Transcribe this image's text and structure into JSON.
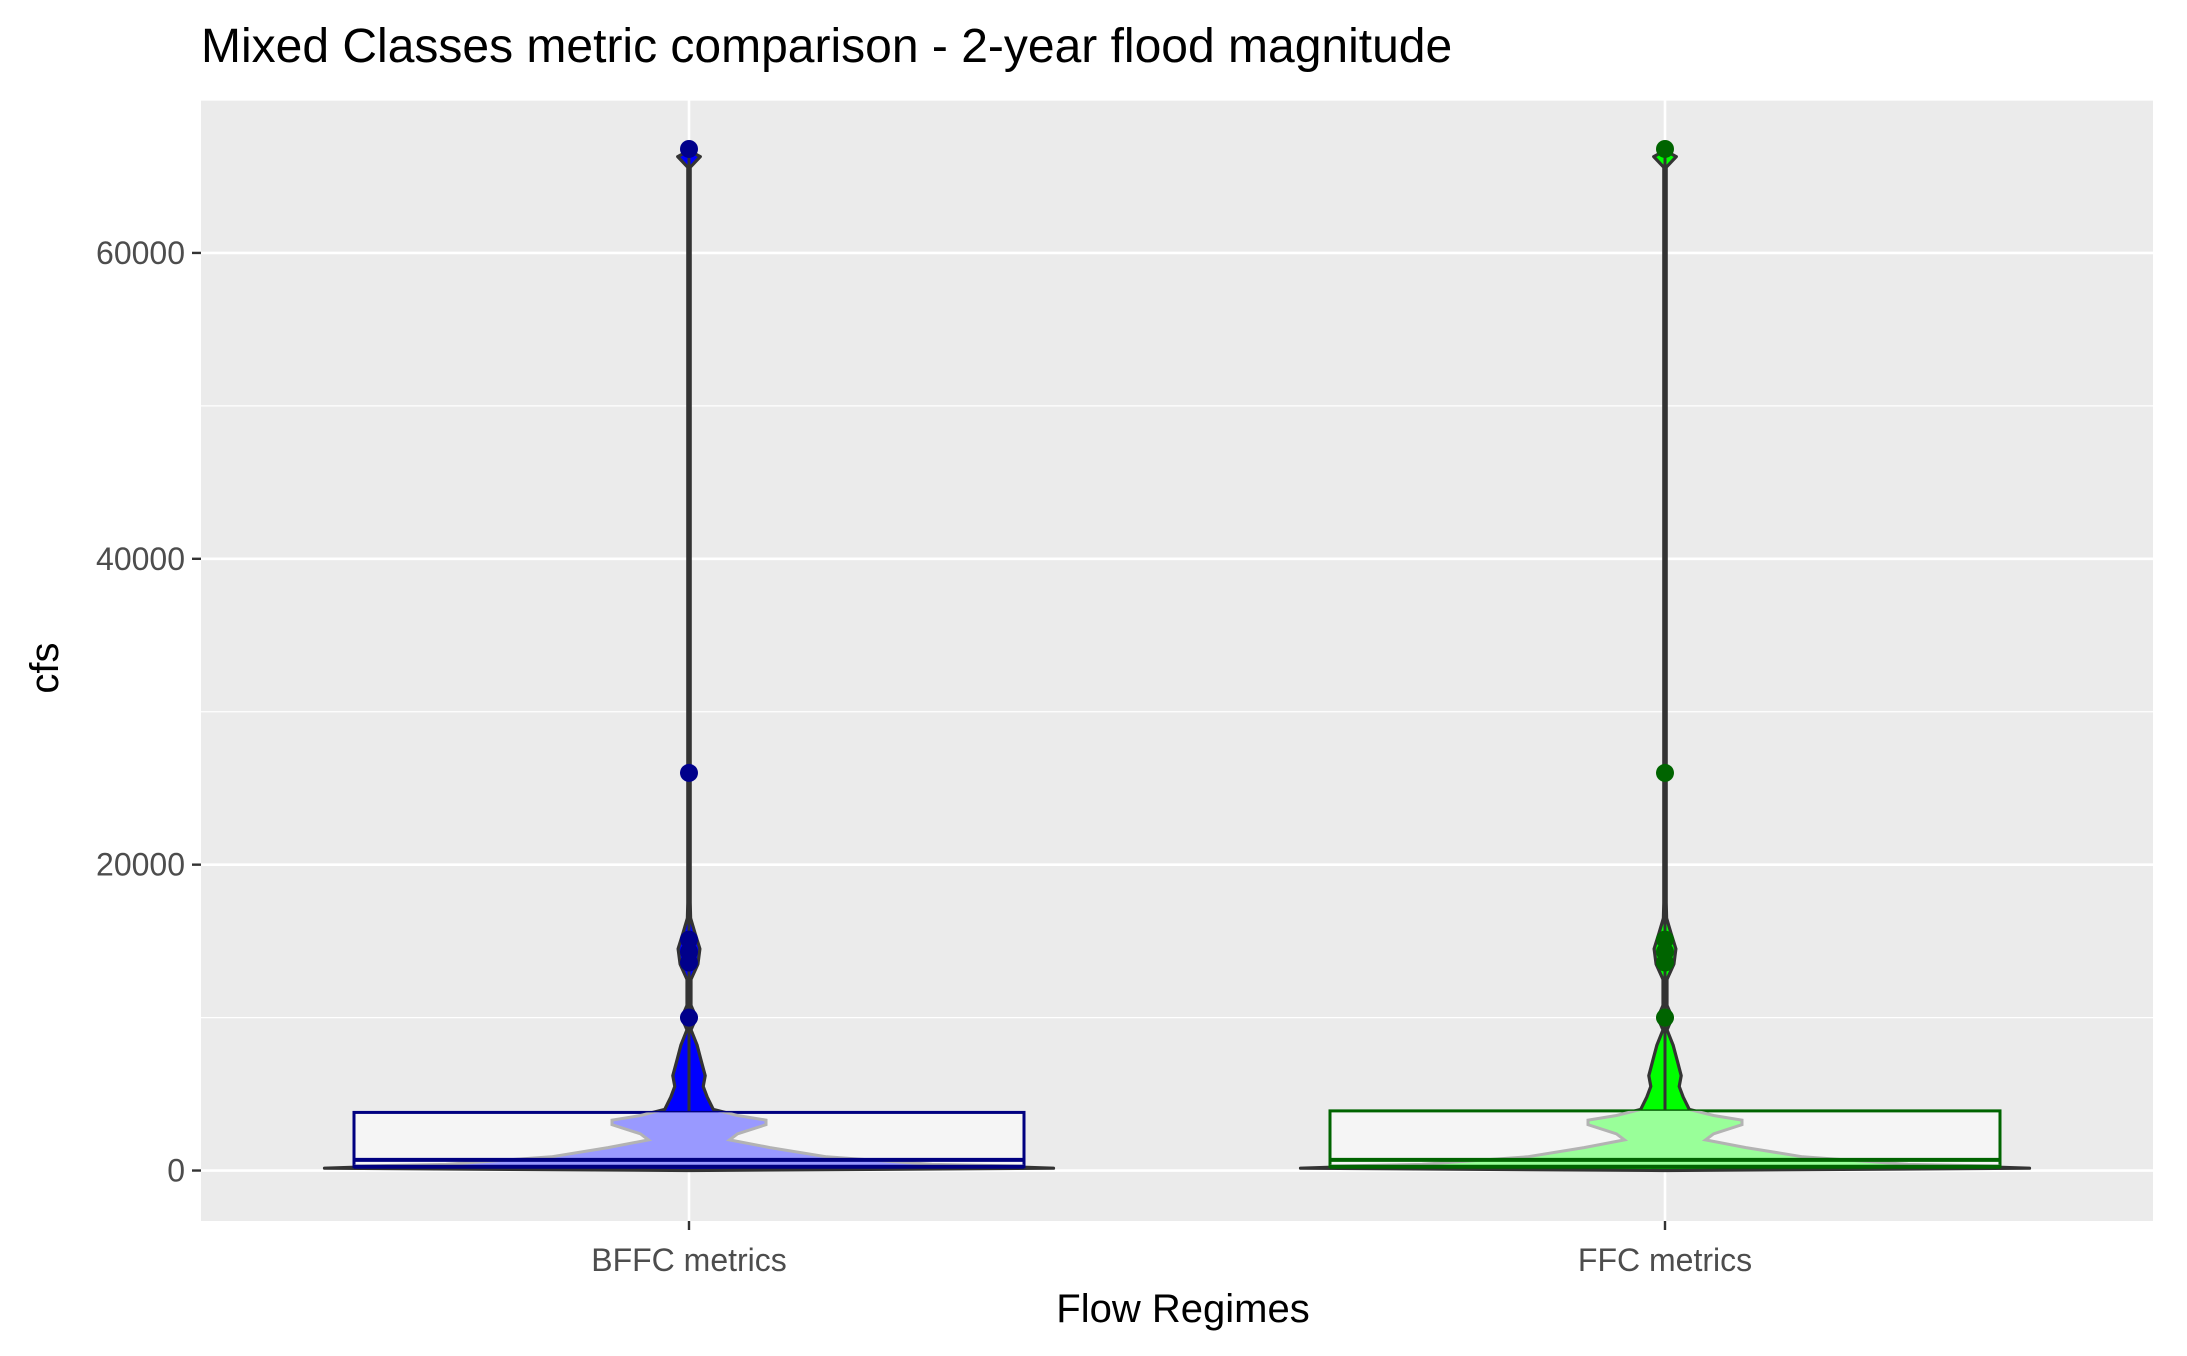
{
  "chart_data": {
    "type": "violin",
    "title": "Mixed Classes metric comparison - 2-year flood magnitude",
    "xlabel": "Flow Regimes",
    "ylabel": "cfs",
    "categories": [
      "BFFC metrics",
      "FFC metrics"
    ],
    "ylim": [
      -3300,
      70000
    ],
    "yticks": [
      0,
      20000,
      40000,
      60000
    ],
    "ytick_labels": [
      "0",
      "20000",
      "40000",
      "60000"
    ],
    "grid": true,
    "legend": "none",
    "series": [
      {
        "category": "BFFC metrics",
        "fill": "#0000ff",
        "inner_fill": "#9999ff",
        "box_color": "#000080",
        "point_color": "#00008b",
        "box": {
          "q1": 250,
          "median": 700,
          "q3": 3800
        },
        "points": [
          66800,
          26000,
          15100,
          14300,
          13600,
          10000
        ],
        "density": [
          {
            "y": 0,
            "w": 0.0
          },
          {
            "y": 150,
            "w": 0.9
          },
          {
            "y": 400,
            "w": 0.6
          },
          {
            "y": 900,
            "w": 0.34
          },
          {
            "y": 1500,
            "w": 0.2
          },
          {
            "y": 2000,
            "w": 0.1
          },
          {
            "y": 2400,
            "w": 0.12
          },
          {
            "y": 3000,
            "w": 0.19
          },
          {
            "y": 3300,
            "w": 0.19
          },
          {
            "y": 3600,
            "w": 0.12
          },
          {
            "y": 4000,
            "w": 0.06
          },
          {
            "y": 4800,
            "w": 0.045
          },
          {
            "y": 5500,
            "w": 0.035
          },
          {
            "y": 6200,
            "w": 0.04
          },
          {
            "y": 7200,
            "w": 0.03
          },
          {
            "y": 8200,
            "w": 0.02
          },
          {
            "y": 9200,
            "w": 0.005
          },
          {
            "y": 10000,
            "w": 0.018
          },
          {
            "y": 10800,
            "w": 0.005
          },
          {
            "y": 12500,
            "w": 0.005
          },
          {
            "y": 13500,
            "w": 0.022
          },
          {
            "y": 14500,
            "w": 0.027
          },
          {
            "y": 15500,
            "w": 0.015
          },
          {
            "y": 16500,
            "w": 0.004
          },
          {
            "y": 17500,
            "w": 0.003
          },
          {
            "y": 25500,
            "w": 0.003
          },
          {
            "y": 26000,
            "w": 0.006
          },
          {
            "y": 26500,
            "w": 0.003
          },
          {
            "y": 65600,
            "w": 0.003
          },
          {
            "y": 66300,
            "w": 0.028
          },
          {
            "y": 66700,
            "w": 0.0
          }
        ]
      },
      {
        "category": "FFC metrics",
        "fill": "#00ff00",
        "inner_fill": "#99ff99",
        "box_color": "#006400",
        "point_color": "#006400",
        "box": {
          "q1": 250,
          "median": 700,
          "q3": 3900
        },
        "points": [
          66800,
          26000,
          15100,
          14300,
          13600,
          10000
        ],
        "density": [
          {
            "y": 0,
            "w": 0.0
          },
          {
            "y": 150,
            "w": 0.9
          },
          {
            "y": 400,
            "w": 0.6
          },
          {
            "y": 900,
            "w": 0.34
          },
          {
            "y": 1500,
            "w": 0.2
          },
          {
            "y": 2000,
            "w": 0.1
          },
          {
            "y": 2400,
            "w": 0.12
          },
          {
            "y": 3000,
            "w": 0.19
          },
          {
            "y": 3300,
            "w": 0.19
          },
          {
            "y": 3600,
            "w": 0.12
          },
          {
            "y": 4000,
            "w": 0.06
          },
          {
            "y": 4800,
            "w": 0.045
          },
          {
            "y": 5500,
            "w": 0.035
          },
          {
            "y": 6200,
            "w": 0.04
          },
          {
            "y": 7200,
            "w": 0.03
          },
          {
            "y": 8200,
            "w": 0.02
          },
          {
            "y": 9200,
            "w": 0.005
          },
          {
            "y": 10000,
            "w": 0.018
          },
          {
            "y": 10800,
            "w": 0.005
          },
          {
            "y": 12500,
            "w": 0.005
          },
          {
            "y": 13500,
            "w": 0.022
          },
          {
            "y": 14500,
            "w": 0.027
          },
          {
            "y": 15500,
            "w": 0.015
          },
          {
            "y": 16500,
            "w": 0.004
          },
          {
            "y": 17500,
            "w": 0.003
          },
          {
            "y": 25500,
            "w": 0.003
          },
          {
            "y": 26000,
            "w": 0.006
          },
          {
            "y": 26500,
            "w": 0.003
          },
          {
            "y": 65600,
            "w": 0.003
          },
          {
            "y": 66300,
            "w": 0.028
          },
          {
            "y": 66700,
            "w": 0.0
          }
        ]
      }
    ],
    "colors": {
      "panel_background": "#ebebeb",
      "gridline": "#ffffff",
      "violin_outline": "#333333",
      "inner_outline": "#b3b3b3",
      "box_fill": "#f5f5f5"
    }
  }
}
